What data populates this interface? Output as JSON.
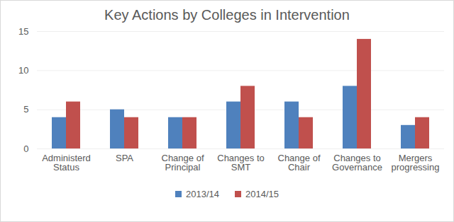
{
  "chart_data": {
    "type": "bar",
    "title": "Key Actions by Colleges in Intervention",
    "categories": [
      "Administerd Status",
      "SPA",
      "Change of Principal",
      "Changes to SMT",
      "Change of Chair",
      "Changes to Governance",
      "Mergers progressing"
    ],
    "series": [
      {
        "name": "2013/14",
        "color": "#4f81bd",
        "values": [
          4,
          5,
          4,
          6,
          6,
          8,
          3
        ]
      },
      {
        "name": "2014/15",
        "color": "#c0504d",
        "values": [
          6,
          4,
          4,
          8,
          4,
          14,
          4
        ]
      }
    ],
    "ylim": [
      0,
      15
    ],
    "yticks": [
      0,
      5,
      10,
      15
    ],
    "grid": true,
    "legend": "bottom"
  }
}
